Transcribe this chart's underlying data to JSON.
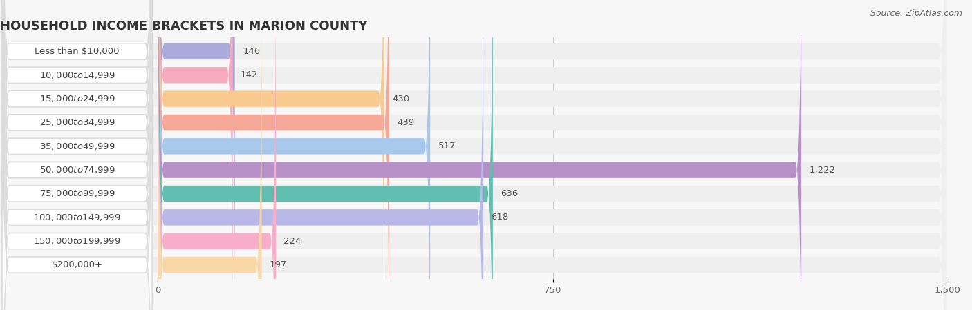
{
  "title": "HOUSEHOLD INCOME BRACKETS IN MARION COUNTY",
  "source": "Source: ZipAtlas.com",
  "categories": [
    "Less than $10,000",
    "$10,000 to $14,999",
    "$15,000 to $24,999",
    "$25,000 to $34,999",
    "$35,000 to $49,999",
    "$50,000 to $74,999",
    "$75,000 to $99,999",
    "$100,000 to $149,999",
    "$150,000 to $199,999",
    "$200,000+"
  ],
  "values": [
    146,
    142,
    430,
    439,
    517,
    1222,
    636,
    618,
    224,
    197
  ],
  "bar_colors": [
    "#aaaadd",
    "#f5aabf",
    "#f9ca90",
    "#f5a898",
    "#a8c8ec",
    "#b890c8",
    "#60bfb0",
    "#b8b8e8",
    "#f8aec8",
    "#f9d8a8"
  ],
  "label_pill_color": "#ffffff",
  "row_bg_color": "#efefef",
  "page_bg_color": "#f7f7f7",
  "xlim": [
    0,
    1500
  ],
  "xticks": [
    0,
    750,
    1500
  ],
  "title_fontsize": 13,
  "label_fontsize": 9.5,
  "value_fontsize": 9.5,
  "source_fontsize": 9
}
